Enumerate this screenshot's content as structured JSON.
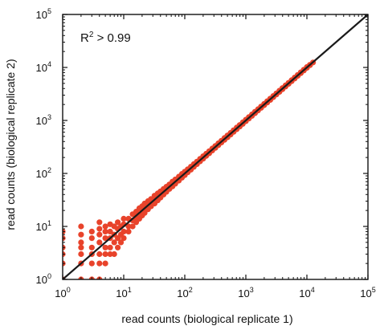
{
  "chart_data": {
    "type": "scatter",
    "title": "",
    "xlabel": "read counts (biological replicate 1)",
    "ylabel": "read counts (biological replicate 2)",
    "xscale": "log",
    "yscale": "log",
    "xlim": [
      1,
      100000
    ],
    "ylim": [
      1,
      100000
    ],
    "grid": false,
    "x_ticks": [
      {
        "base": "10",
        "exp": "0",
        "value": 1
      },
      {
        "base": "10",
        "exp": "1",
        "value": 10
      },
      {
        "base": "10",
        "exp": "2",
        "value": 100
      },
      {
        "base": "10",
        "exp": "3",
        "value": 1000
      },
      {
        "base": "10",
        "exp": "4",
        "value": 10000
      },
      {
        "base": "10",
        "exp": "5",
        "value": 100000
      }
    ],
    "y_ticks": [
      {
        "base": "10",
        "exp": "0",
        "value": 1
      },
      {
        "base": "10",
        "exp": "1",
        "value": 10
      },
      {
        "base": "10",
        "exp": "2",
        "value": 100
      },
      {
        "base": "10",
        "exp": "3",
        "value": 1000
      },
      {
        "base": "10",
        "exp": "4",
        "value": 10000
      },
      {
        "base": "10",
        "exp": "5",
        "value": 100000
      }
    ],
    "annotation": {
      "prefix": "R",
      "sup": "2",
      "suffix": " > 0.99"
    },
    "reference_line": {
      "type": "y=x",
      "color": "#1a1a1a"
    },
    "marker_color": "#e8432b",
    "series": [
      {
        "points": [
          [
            1,
            1
          ],
          [
            1,
            2
          ],
          [
            1,
            3
          ],
          [
            1,
            4
          ],
          [
            1,
            6
          ],
          [
            1,
            8
          ],
          [
            2,
            1
          ],
          [
            2,
            2
          ],
          [
            2,
            3
          ],
          [
            2,
            4
          ],
          [
            2,
            5
          ],
          [
            2,
            7
          ],
          [
            2,
            10
          ],
          [
            3,
            1
          ],
          [
            3,
            2
          ],
          [
            3,
            3
          ],
          [
            3,
            4
          ],
          [
            3,
            6
          ],
          [
            3,
            8
          ],
          [
            4,
            1
          ],
          [
            4,
            2
          ],
          [
            4,
            3
          ],
          [
            4,
            5
          ],
          [
            4,
            7
          ],
          [
            4,
            9
          ],
          [
            4,
            12
          ],
          [
            5,
            2
          ],
          [
            5,
            3
          ],
          [
            5,
            4
          ],
          [
            5,
            6
          ],
          [
            5,
            8
          ],
          [
            5,
            10
          ],
          [
            6,
            3
          ],
          [
            6,
            4
          ],
          [
            6,
            6
          ],
          [
            6,
            8
          ],
          [
            6,
            11
          ],
          [
            7,
            3
          ],
          [
            7,
            5
          ],
          [
            7,
            7
          ],
          [
            7,
            10
          ],
          [
            8,
            4
          ],
          [
            8,
            6
          ],
          [
            8,
            9
          ],
          [
            8,
            12
          ],
          [
            9,
            5
          ],
          [
            9,
            7
          ],
          [
            9,
            10
          ],
          [
            10,
            6
          ],
          [
            10,
            8
          ],
          [
            10,
            11
          ],
          [
            10,
            14
          ],
          [
            12,
            8
          ],
          [
            12,
            10
          ],
          [
            12,
            14
          ],
          [
            14,
            10
          ],
          [
            14,
            13
          ],
          [
            14,
            17
          ],
          [
            16,
            12
          ],
          [
            16,
            15
          ],
          [
            16,
            19
          ],
          [
            18,
            14
          ],
          [
            18,
            17
          ],
          [
            18,
            22
          ],
          [
            20,
            16
          ],
          [
            20,
            19
          ],
          [
            20,
            24
          ],
          [
            22,
            18
          ],
          [
            22,
            22
          ],
          [
            22,
            27
          ],
          [
            25,
            21
          ],
          [
            25,
            25
          ],
          [
            25,
            30
          ],
          [
            28,
            24
          ],
          [
            28,
            28
          ],
          [
            28,
            33
          ],
          [
            32,
            27
          ],
          [
            32,
            32
          ],
          [
            32,
            38
          ],
          [
            36,
            31
          ],
          [
            36,
            36
          ],
          [
            36,
            42
          ],
          [
            40,
            35
          ],
          [
            40,
            40
          ],
          [
            40,
            46
          ],
          [
            45,
            40
          ],
          [
            45,
            45
          ],
          [
            45,
            51
          ],
          [
            50,
            45
          ],
          [
            50,
            50
          ],
          [
            50,
            56
          ],
          [
            56,
            51
          ],
          [
            56,
            56
          ],
          [
            56,
            62
          ],
          [
            63,
            57
          ],
          [
            63,
            63
          ],
          [
            63,
            70
          ],
          [
            70,
            64
          ],
          [
            70,
            70
          ],
          [
            70,
            77
          ],
          [
            80,
            73
          ],
          [
            80,
            80
          ],
          [
            80,
            87
          ],
          [
            90,
            83
          ],
          [
            90,
            90
          ],
          [
            90,
            98
          ],
          [
            100,
            93
          ],
          [
            100,
            100
          ],
          [
            100,
            108
          ],
          [
            112,
            105
          ],
          [
            112,
            112
          ],
          [
            112,
            120
          ],
          [
            126,
            118
          ],
          [
            126,
            126
          ],
          [
            126,
            134
          ],
          [
            141,
            133
          ],
          [
            141,
            141
          ],
          [
            141,
            150
          ],
          [
            158,
            150
          ],
          [
            158,
            158
          ],
          [
            158,
            167
          ],
          [
            178,
            169
          ],
          [
            178,
            178
          ],
          [
            178,
            188
          ],
          [
            200,
            190
          ],
          [
            200,
            200
          ],
          [
            200,
            211
          ],
          [
            224,
            214
          ],
          [
            224,
            224
          ],
          [
            224,
            235
          ],
          [
            251,
            240
          ],
          [
            251,
            251
          ],
          [
            251,
            263
          ],
          [
            282,
            270
          ],
          [
            282,
            282
          ],
          [
            282,
            295
          ],
          [
            316,
            303
          ],
          [
            316,
            316
          ],
          [
            316,
            330
          ],
          [
            355,
            341
          ],
          [
            355,
            355
          ],
          [
            355,
            370
          ],
          [
            398,
            383
          ],
          [
            398,
            398
          ],
          [
            398,
            414
          ],
          [
            447,
            430
          ],
          [
            447,
            447
          ],
          [
            447,
            465
          ],
          [
            501,
            483
          ],
          [
            501,
            501
          ],
          [
            501,
            520
          ],
          [
            562,
            542
          ],
          [
            562,
            562
          ],
          [
            562,
            583
          ],
          [
            631,
            609
          ],
          [
            631,
            631
          ],
          [
            631,
            654
          ],
          [
            708,
            684
          ],
          [
            708,
            708
          ],
          [
            708,
            733
          ],
          [
            794,
            768
          ],
          [
            794,
            794
          ],
          [
            794,
            821
          ],
          [
            891,
            862
          ],
          [
            891,
            891
          ],
          [
            891,
            921
          ],
          [
            1000,
            968
          ],
          [
            1000,
            1000
          ],
          [
            1000,
            1033
          ],
          [
            1122,
            1087
          ],
          [
            1122,
            1122
          ],
          [
            1122,
            1158
          ],
          [
            1259,
            1221
          ],
          [
            1259,
            1259
          ],
          [
            1259,
            1298
          ],
          [
            1413,
            1371
          ],
          [
            1413,
            1413
          ],
          [
            1413,
            1456
          ],
          [
            1585,
            1539
          ],
          [
            1585,
            1585
          ],
          [
            1585,
            1632
          ],
          [
            1778,
            1728
          ],
          [
            1778,
            1778
          ],
          [
            1778,
            1830
          ],
          [
            1995,
            1940
          ],
          [
            1995,
            1995
          ],
          [
            1995,
            2052
          ],
          [
            2239,
            2179
          ],
          [
            2239,
            2239
          ],
          [
            2239,
            2301
          ],
          [
            2512,
            2446
          ],
          [
            2512,
            2512
          ],
          [
            2512,
            2580
          ],
          [
            2818,
            2746
          ],
          [
            2818,
            2818
          ],
          [
            2818,
            2892
          ],
          [
            3162,
            3083
          ],
          [
            3162,
            3162
          ],
          [
            3162,
            3243
          ],
          [
            3548,
            3462
          ],
          [
            3548,
            3548
          ],
          [
            3548,
            3636
          ],
          [
            3981,
            3888
          ],
          [
            3981,
            3981
          ],
          [
            3981,
            4076
          ],
          [
            4467,
            4366
          ],
          [
            4467,
            4467
          ],
          [
            4467,
            4570
          ],
          [
            5012,
            4902
          ],
          [
            5012,
            5012
          ],
          [
            5012,
            5125
          ],
          [
            5623,
            5505
          ],
          [
            5623,
            5623
          ],
          [
            5623,
            5744
          ],
          [
            6310,
            6182
          ],
          [
            6310,
            6310
          ],
          [
            6310,
            6441
          ],
          [
            7079,
            6942
          ],
          [
            7079,
            7079
          ],
          [
            7079,
            7219
          ],
          [
            7943,
            7796
          ],
          [
            7943,
            7943
          ],
          [
            7943,
            8093
          ],
          [
            8913,
            8755
          ],
          [
            8913,
            8913
          ],
          [
            8913,
            9073
          ],
          [
            10000,
            9830
          ],
          [
            10000,
            10000
          ],
          [
            10000,
            10172
          ],
          [
            11220,
            11040
          ],
          [
            11220,
            11220
          ],
          [
            12589,
            12400
          ]
        ]
      }
    ]
  }
}
